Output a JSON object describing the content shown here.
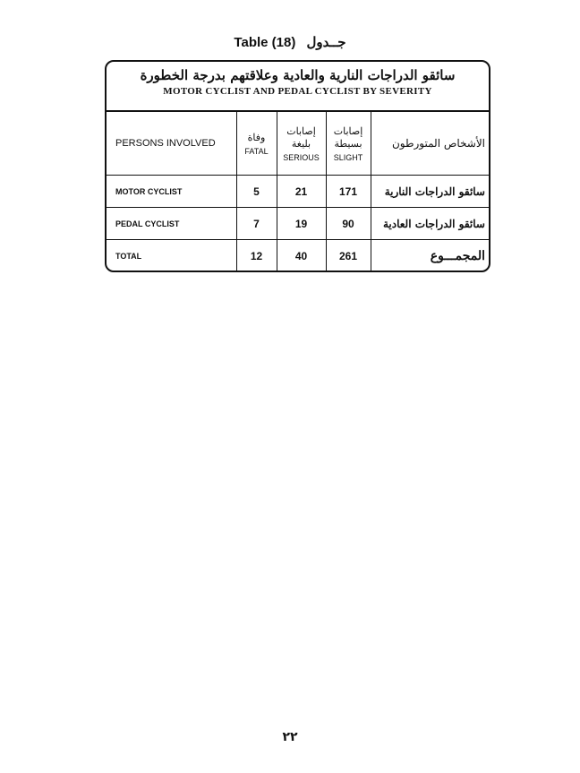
{
  "caption": {
    "en": "Table (18)",
    "ar": "جــدول"
  },
  "table": {
    "title_ar": "سائقو الدراجات النارية والعادية وعلاقتهم بدرجة الخطورة",
    "title_en": "MOTOR CYCLIST AND PEDAL CYCLIST BY SEVERITY",
    "headers": {
      "persons_en": "PERSONS INVOLVED",
      "fatal_ar": "وفاة",
      "fatal_en": "FATAL",
      "serious_ar": "إصابات بليغة",
      "serious_en": "SERIOUS",
      "slight_ar": "إصابات بسيطة",
      "slight_en": "SLIGHT",
      "persons_ar": "الأشخاص المتورطون"
    },
    "rows": [
      {
        "en": "MOTOR CYCLIST",
        "fatal": "5",
        "serious": "21",
        "slight": "171",
        "ar": "سائقو الدراجات النارية"
      },
      {
        "en": "PEDAL CYCLIST",
        "fatal": "7",
        "serious": "19",
        "slight": "90",
        "ar": "سائقو الدراجات العادية"
      },
      {
        "en": "TOTAL",
        "fatal": "12",
        "serious": "40",
        "slight": "261",
        "ar": "المجمـــوع"
      }
    ]
  },
  "page_number": "٢٢"
}
